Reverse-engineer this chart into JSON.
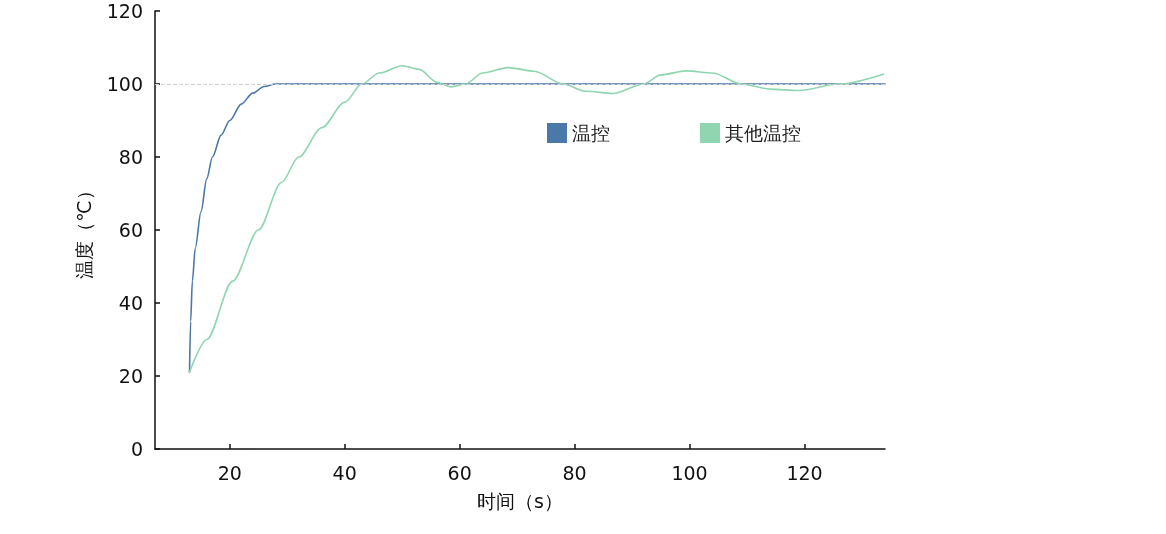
{
  "chart_data": {
    "type": "line",
    "xlabel": "时间（s）",
    "ylabel": "温度（℃）",
    "xlim": [
      7,
      134
    ],
    "xticks": [
      20,
      40,
      60,
      80,
      100,
      120
    ],
    "ylim": [
      0,
      120
    ],
    "yticks": [
      0,
      20,
      40,
      60,
      80,
      100,
      120
    ],
    "grid": false,
    "legend": "top right",
    "marker": "none",
    "ref_lines": [
      {
        "axis": "y",
        "value": 100,
        "color": "#d0d0d0",
        "line_style": "dashed"
      }
    ],
    "series": [
      {
        "name": "温控",
        "color": "#4a78a8",
        "x": [
          13,
          13.2,
          13.5,
          14,
          15,
          16,
          17,
          18.5,
          20,
          22,
          24,
          26,
          28,
          134
        ],
        "values": [
          21,
          35,
          46,
          55,
          65,
          74,
          80,
          86,
          90,
          94.5,
          97.5,
          99.3,
          100,
          100
        ]
      },
      {
        "name": "其他温控",
        "color": "#8fd6b0",
        "x": [
          13,
          16,
          20.5,
          25,
          29,
          32,
          36,
          40,
          43,
          46,
          50,
          53,
          56,
          58.5,
          61,
          64,
          68.4,
          73,
          78,
          82,
          86.7,
          92,
          95,
          99.4,
          104,
          109,
          114,
          119,
          126,
          133.7
        ],
        "values": [
          21,
          30,
          46,
          60,
          73,
          80,
          88,
          95,
          100,
          103,
          105,
          104,
          100.5,
          99.2,
          100,
          103,
          104.5,
          103.5,
          100,
          98,
          97.4,
          100,
          102.5,
          103.6,
          103,
          100,
          98.6,
          98.2,
          100,
          102.7
        ]
      }
    ]
  }
}
